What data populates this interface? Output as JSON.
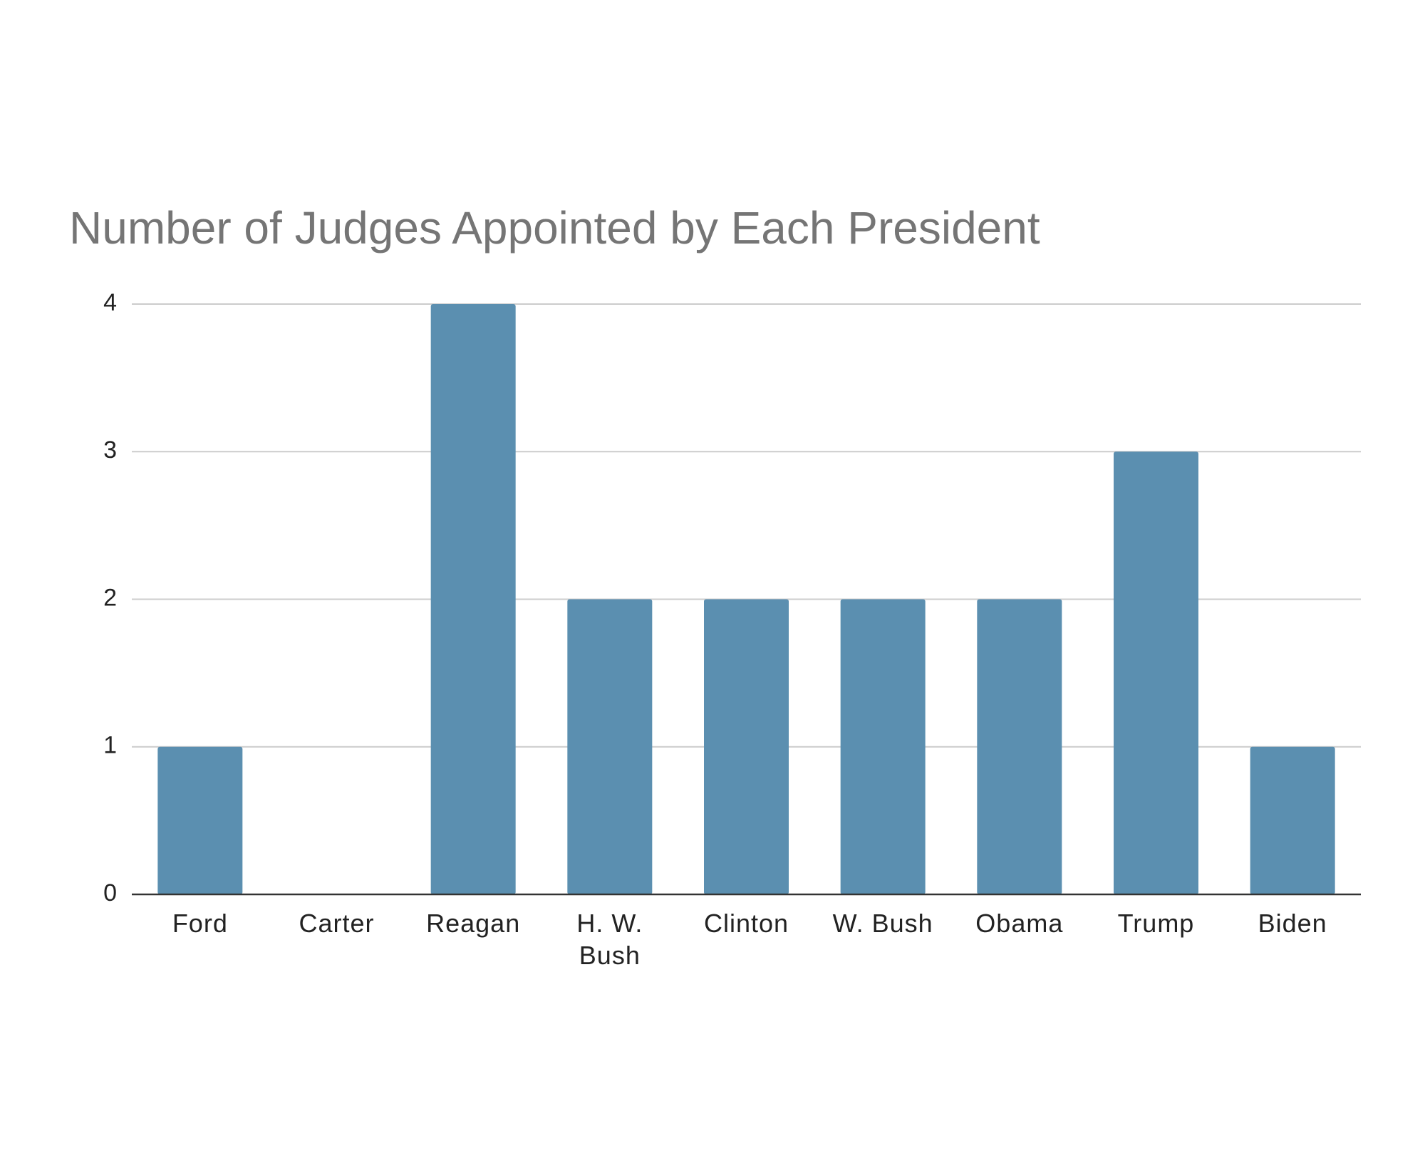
{
  "chart_data": {
    "type": "bar",
    "title": "Number of Judges Appointed by Each President",
    "xlabel": "",
    "ylabel": "",
    "categories": [
      "Ford",
      "Carter",
      "Reagan",
      "H. W. Bush",
      "Clinton",
      "W. Bush",
      "Obama",
      "Trump",
      "Biden"
    ],
    "category_label_lines": [
      [
        "Ford"
      ],
      [
        "Carter"
      ],
      [
        "Reagan"
      ],
      [
        "H. W.",
        "Bush"
      ],
      [
        "Clinton"
      ],
      [
        "W. Bush"
      ],
      [
        "Obama"
      ],
      [
        "Trump"
      ],
      [
        "Biden"
      ]
    ],
    "values": [
      1,
      0,
      4,
      2,
      2,
      2,
      2,
      3,
      1
    ],
    "ylim": [
      0,
      4
    ],
    "yticks": [
      0,
      1,
      2,
      3,
      4
    ],
    "grid": true,
    "legend": "none",
    "bar_color": "#5b8fb0",
    "grid_color": "#cccccc",
    "axis_color": "#333333"
  }
}
